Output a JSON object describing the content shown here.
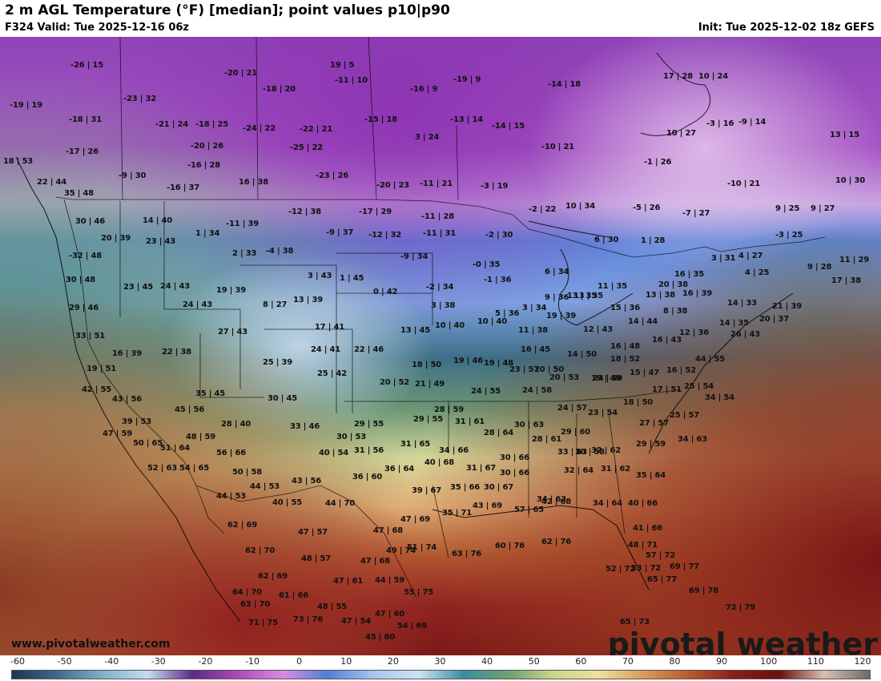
{
  "header": {
    "title": "2 m AGL Temperature (°F) [median]; point values p10|p90",
    "valid": "F324 Valid: Tue 2025-12-16 06z",
    "init": "Init: Tue 2025-12-02 18z GEFS"
  },
  "footer": {
    "website": "www.pivotalweather.com",
    "brand": "pivotal weather"
  },
  "legend": {
    "units": "°F",
    "ticks": [
      "-60",
      "-50",
      "-40",
      "-30",
      "-20",
      "-10",
      "0",
      "10",
      "20",
      "30",
      "40",
      "50",
      "60",
      "70",
      "80",
      "90",
      "100",
      "110",
      "120"
    ],
    "colors": [
      "#1e3550",
      "#3f6a8a",
      "#7fb0c8",
      "#c5dcef",
      "#5b2a86",
      "#b048b6",
      "#d88ce0",
      "#4f7fd8",
      "#a8c4f0",
      "#cfe3f2",
      "#3a8ea0",
      "#6f9f72",
      "#cbd68a",
      "#efe09a",
      "#d89a5a",
      "#b85a2e",
      "#8a1c1c",
      "#6b1010",
      "#d9c0b0",
      "#6a6a6a"
    ]
  },
  "map": {
    "description_colors": {
      "cold_purple": "#8a3fb0",
      "light_purple": "#d8b0e8",
      "blue": "#4f7fd8",
      "light_blue": "#a9c7ef",
      "teal": "#2f6f78",
      "green": "#5d8f6a",
      "yellow": "#e9e1a0",
      "orange": "#d2915a",
      "brown": "#a0522d",
      "red": "#8a1c1c"
    },
    "points": [
      {
        "t": "-26 | 15"
      },
      {
        "t": "-19 | 19"
      },
      {
        "t": "-18 | 31"
      },
      {
        "t": "-17 | 26"
      },
      {
        "t": "18 | 53"
      },
      {
        "t": "22 | 44"
      },
      {
        "t": "-23 | 32"
      },
      {
        "t": "-21 | 24"
      },
      {
        "t": "-18 | 25"
      },
      {
        "t": "-20 | 26"
      },
      {
        "t": "-16 | 28"
      },
      {
        "t": "-9 | 30"
      },
      {
        "t": "-16 | 37"
      },
      {
        "t": "-20 | 21"
      },
      {
        "t": "-18 | 20"
      },
      {
        "t": "-24 | 22"
      },
      {
        "t": "-22 | 21"
      },
      {
        "t": "-25 | 22"
      },
      {
        "t": "16 | 38"
      },
      {
        "t": "-23 | 26"
      },
      {
        "t": "19 | 5"
      },
      {
        "t": "-11 | 10"
      },
      {
        "t": "-16 | 9"
      },
      {
        "t": "-19 | 9"
      },
      {
        "t": "-15 | 18"
      },
      {
        "t": "3 | 24"
      },
      {
        "t": "-13 | 14"
      },
      {
        "t": "-14 | 15"
      },
      {
        "t": "-20 | 23"
      },
      {
        "t": "-11 | 21"
      },
      {
        "t": "-3 | 19"
      },
      {
        "t": "-10 | 21"
      },
      {
        "t": "-14 | 18"
      },
      {
        "t": "17 | 28"
      },
      {
        "t": "10 | 24"
      },
      {
        "t": "-3 | 16"
      },
      {
        "t": "-9 | 14"
      },
      {
        "t": "10 | 27"
      },
      {
        "t": "13 | 15"
      },
      {
        "t": "-1 | 26"
      },
      {
        "t": "-10 | 21"
      },
      {
        "t": "10 | 30"
      },
      {
        "t": "35 | 48"
      },
      {
        "t": "30 | 46"
      },
      {
        "t": "20 | 39"
      },
      {
        "t": "14 | 40"
      },
      {
        "t": "23 | 43"
      },
      {
        "t": "1 | 34"
      },
      {
        "t": "-11 | 39"
      },
      {
        "t": "-12 | 38"
      },
      {
        "t": "-17 | 29"
      },
      {
        "t": "-11 | 28"
      },
      {
        "t": "-9 | 37"
      },
      {
        "t": "-12 | 32"
      },
      {
        "t": "-11 | 31"
      },
      {
        "t": "-2 | 30"
      },
      {
        "t": "-2 | 22"
      },
      {
        "t": "10 | 34"
      },
      {
        "t": "-5 | 26"
      },
      {
        "t": "-7 | 27"
      },
      {
        "t": "9 | 25"
      },
      {
        "t": "9 | 27"
      },
      {
        "t": "-3 | 25"
      },
      {
        "t": "-32 | 48"
      },
      {
        "t": "2 | 33"
      },
      {
        "t": "-4 | 38"
      },
      {
        "t": "-9 | 34"
      },
      {
        "t": "6 | 30"
      },
      {
        "t": "1 | 28"
      },
      {
        "t": "3 | 31"
      },
      {
        "t": "4 | 27"
      },
      {
        "t": "11 | 29"
      },
      {
        "t": "30 | 48"
      },
      {
        "t": "23 | 45"
      },
      {
        "t": "24 | 43"
      },
      {
        "t": "3 | 43"
      },
      {
        "t": "1 | 45"
      },
      {
        "t": "-0 | 35"
      },
      {
        "t": "-1 | 36"
      },
      {
        "t": "6 | 34"
      },
      {
        "t": "13 | 35"
      },
      {
        "t": "4 | 25"
      },
      {
        "t": "9 | 28"
      },
      {
        "t": "17 | 38"
      },
      {
        "t": "16 | 35"
      },
      {
        "t": "29 | 46"
      },
      {
        "t": "19 | 39"
      },
      {
        "t": "24 | 43"
      },
      {
        "t": "8 | 27"
      },
      {
        "t": "13 | 39"
      },
      {
        "t": "0 | 42"
      },
      {
        "t": "-2 | 34"
      },
      {
        "t": "3 | 38"
      },
      {
        "t": "9 | 36"
      },
      {
        "t": "13 | 35"
      },
      {
        "t": "11 | 35"
      },
      {
        "t": "20 | 38"
      },
      {
        "t": "16 | 39"
      },
      {
        "t": "14 | 33"
      },
      {
        "t": "21 | 39"
      },
      {
        "t": "20 | 37"
      },
      {
        "t": "33 | 51"
      },
      {
        "t": "27 | 43"
      },
      {
        "t": "17 | 41"
      },
      {
        "t": "13 | 45"
      },
      {
        "t": "10 | 40"
      },
      {
        "t": "10 | 40"
      },
      {
        "t": "5 | 36"
      },
      {
        "t": "3 | 34"
      },
      {
        "t": "19 | 39"
      },
      {
        "t": "15 | 36"
      },
      {
        "t": "13 | 38"
      },
      {
        "t": "8 | 38"
      },
      {
        "t": "14 | 44"
      },
      {
        "t": "14 | 35"
      },
      {
        "t": "26 | 43"
      },
      {
        "t": "16 | 39"
      },
      {
        "t": "22 | 38"
      },
      {
        "t": "24 | 41"
      },
      {
        "t": "22 | 46"
      },
      {
        "t": "11 | 38"
      },
      {
        "t": "12 | 43"
      },
      {
        "t": "16 | 48"
      },
      {
        "t": "16 | 43"
      },
      {
        "t": "12 | 36"
      },
      {
        "t": "25 | 39"
      },
      {
        "t": "25 | 42"
      },
      {
        "t": "18 | 50"
      },
      {
        "t": "19 | 46"
      },
      {
        "t": "19 | 48"
      },
      {
        "t": "16 | 45"
      },
      {
        "t": "14 | 50"
      },
      {
        "t": "18 | 52"
      },
      {
        "t": "20 | 50"
      },
      {
        "t": "24 | 50"
      },
      {
        "t": "44 | 55"
      },
      {
        "t": "19 | 51"
      },
      {
        "t": "20 | 52"
      },
      {
        "t": "21 | 49"
      },
      {
        "t": "23 | 57"
      },
      {
        "t": "20 | 53"
      },
      {
        "t": "19 | 49"
      },
      {
        "t": "15 | 47"
      },
      {
        "t": "16 | 52"
      },
      {
        "t": "42 | 55"
      },
      {
        "t": "35 | 45"
      },
      {
        "t": "43 | 56"
      },
      {
        "t": "24 | 55"
      },
      {
        "t": "24 | 58"
      },
      {
        "t": "17 | 51"
      },
      {
        "t": "25 | 54"
      },
      {
        "t": "45 | 56"
      },
      {
        "t": "30 | 45"
      },
      {
        "t": "28 | 59"
      },
      {
        "t": "18 | 50"
      },
      {
        "t": "34 | 54"
      },
      {
        "t": "39 | 53"
      },
      {
        "t": "28 | 40"
      },
      {
        "t": "29 | 55"
      },
      {
        "t": "29 | 55"
      },
      {
        "t": "31 | 61"
      },
      {
        "t": "24 | 57"
      },
      {
        "t": "23 | 54"
      },
      {
        "t": "25 | 57"
      },
      {
        "t": "47 | 59"
      },
      {
        "t": "33 | 46"
      },
      {
        "t": "30 | 63"
      },
      {
        "t": "28 | 64"
      },
      {
        "t": "27 | 57"
      },
      {
        "t": "48 | 59"
      },
      {
        "t": "30 | 53"
      },
      {
        "t": "28 | 61"
      },
      {
        "t": "29 | 60"
      },
      {
        "t": "34 | 63"
      },
      {
        "t": "50 | 65"
      },
      {
        "t": "51 | 64"
      },
      {
        "t": "31 | 65"
      },
      {
        "t": "34 | 66"
      },
      {
        "t": "30 | 58"
      },
      {
        "t": "29 | 59"
      },
      {
        "t": "56 | 66"
      },
      {
        "t": "40 | 54"
      },
      {
        "t": "31 | 56"
      },
      {
        "t": "30 | 66"
      },
      {
        "t": "33 | 63"
      },
      {
        "t": "32 | 62"
      },
      {
        "t": "52 | 63"
      },
      {
        "t": "54 | 65"
      },
      {
        "t": "36 | 64"
      },
      {
        "t": "40 | 68"
      },
      {
        "t": "31 | 67"
      },
      {
        "t": "30 | 66"
      },
      {
        "t": "32 | 64"
      },
      {
        "t": "31 | 62"
      },
      {
        "t": "35 | 64"
      },
      {
        "t": "50 | 58"
      },
      {
        "t": "36 | 60"
      },
      {
        "t": "44 | 53"
      },
      {
        "t": "43 | 56"
      },
      {
        "t": "39 | 67"
      },
      {
        "t": "35 | 66"
      },
      {
        "t": "30 | 67"
      },
      {
        "t": "34 | 63"
      },
      {
        "t": "57 | 65"
      },
      {
        "t": "44 | 53"
      },
      {
        "t": "40 | 55"
      },
      {
        "t": "44 | 70"
      },
      {
        "t": "35 | 71"
      },
      {
        "t": "43 | 69"
      },
      {
        "t": "42 | 68"
      },
      {
        "t": "34 | 64"
      },
      {
        "t": "40 | 66"
      },
      {
        "t": "62 | 69"
      },
      {
        "t": "47 | 57"
      },
      {
        "t": "47 | 68"
      },
      {
        "t": "47 | 69"
      },
      {
        "t": "41 | 66"
      },
      {
        "t": "62 | 70"
      },
      {
        "t": "48 | 57"
      },
      {
        "t": "47 | 68"
      },
      {
        "t": "49 | 74"
      },
      {
        "t": "51 | 74"
      },
      {
        "t": "63 | 76"
      },
      {
        "t": "60 | 76"
      },
      {
        "t": "62 | 76"
      },
      {
        "t": "48 | 71"
      },
      {
        "t": "57 | 72"
      },
      {
        "t": "62 | 69"
      },
      {
        "t": "53 | 72"
      },
      {
        "t": "52 | 72"
      },
      {
        "t": "69 | 77"
      },
      {
        "t": "47 | 61"
      },
      {
        "t": "44 | 59"
      },
      {
        "t": "65 | 77"
      },
      {
        "t": "64 | 70"
      },
      {
        "t": "61 | 66"
      },
      {
        "t": "55 | 75"
      },
      {
        "t": "69 | 78"
      },
      {
        "t": "63 | 70"
      },
      {
        "t": "48 | 55"
      },
      {
        "t": "47 | 60"
      },
      {
        "t": "72 | 79"
      },
      {
        "t": "71 | 75"
      },
      {
        "t": "73 | 76"
      },
      {
        "t": "47 | 54"
      },
      {
        "t": "54 | 69"
      },
      {
        "t": "65 | 73"
      },
      {
        "t": "45 | 60"
      }
    ]
  }
}
